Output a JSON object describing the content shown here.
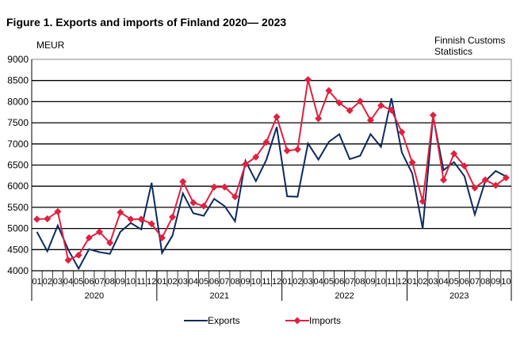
{
  "chart_data": {
    "type": "line",
    "title": "Figure 1. Exports and imports of Finland 2020— 2023",
    "ylabel": "MEUR",
    "source": [
      "Finnish Customs",
      "Statistics"
    ],
    "ylim": [
      4000,
      9000
    ],
    "yticks": [
      4000,
      4500,
      5000,
      5500,
      6000,
      6500,
      7000,
      7500,
      8000,
      8500,
      9000
    ],
    "grid": true,
    "legend": "bottom",
    "years": [
      {
        "label": "2020",
        "months": 12
      },
      {
        "label": "2021",
        "months": 12
      },
      {
        "label": "2022",
        "months": 12
      },
      {
        "label": "2023",
        "months": 10
      }
    ],
    "categories": [
      "01",
      "02",
      "03",
      "04",
      "05",
      "06",
      "07",
      "08",
      "09",
      "10",
      "11",
      "12",
      "01",
      "02",
      "03",
      "04",
      "05",
      "06",
      "07",
      "08",
      "09",
      "10",
      "11",
      "12",
      "01",
      "02",
      "03",
      "04",
      "05",
      "06",
      "07",
      "08",
      "09",
      "10",
      "11",
      "12",
      "01",
      "02",
      "03",
      "04",
      "05",
      "06",
      "07",
      "08",
      "09",
      "10"
    ],
    "series": [
      {
        "name": "Exports",
        "color": "#0d2a5c",
        "marker": "none",
        "values": [
          4920,
          4460,
          5070,
          4500,
          4050,
          4510,
          4440,
          4400,
          4920,
          5130,
          4980,
          6080,
          4420,
          4830,
          5830,
          5360,
          5300,
          5700,
          5530,
          5170,
          6600,
          6120,
          6620,
          7400,
          5760,
          5750,
          7010,
          6630,
          7050,
          7230,
          6640,
          6720,
          7230,
          6930,
          8080,
          6800,
          6300,
          5000,
          7650,
          6380,
          6570,
          6240,
          5330,
          6120,
          6360,
          6230
        ]
      },
      {
        "name": "Imports",
        "color": "#e0203f",
        "marker": "diamond",
        "values": [
          5220,
          5230,
          5400,
          4250,
          4370,
          4780,
          4920,
          4660,
          5380,
          5220,
          5220,
          5110,
          4780,
          5270,
          6110,
          5610,
          5530,
          5980,
          5980,
          5750,
          6520,
          6690,
          7040,
          7640,
          6840,
          6870,
          8520,
          7600,
          8260,
          7970,
          7790,
          8010,
          7560,
          7910,
          7800,
          7280,
          6560,
          5640,
          7680,
          6150,
          6770,
          6480,
          5960,
          6150,
          6020,
          6200
        ]
      }
    ]
  }
}
